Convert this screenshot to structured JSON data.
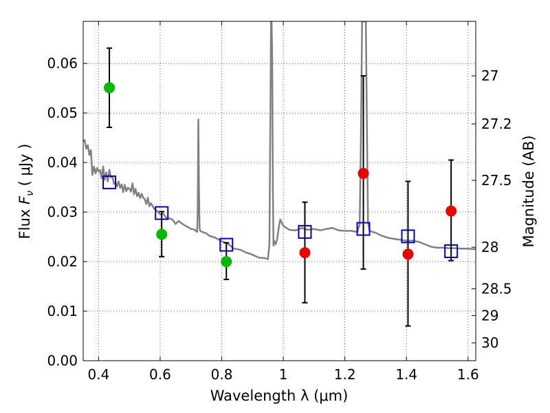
{
  "chart_data": {
    "type": "scatter",
    "xlabel": "Wavelength  λ (μm)",
    "ylabel": "Flux  F_ν  ( μJy )",
    "y2label": "Magnitude (AB)",
    "xlim": [
      0.35,
      1.625
    ],
    "ylim": [
      0.0,
      0.0685
    ],
    "grid": true,
    "x_ticks": [
      0.4,
      0.6,
      0.8,
      1.0,
      1.2,
      1.4,
      1.6
    ],
    "x_tick_labels": [
      "0.4",
      "0.6",
      "0.8",
      "1",
      "1.2",
      "1.4",
      "1.6"
    ],
    "y_ticks": [
      0.0,
      0.01,
      0.02,
      0.03,
      0.04,
      0.05,
      0.06
    ],
    "y_tick_labels": [
      "0.00",
      "0.01",
      "0.02",
      "0.03",
      "0.04",
      "0.05",
      "0.06"
    ],
    "y2_ticks": [
      {
        "label": "27",
        "flux": 0.0575
      },
      {
        "label": "27.2",
        "flux": 0.0478
      },
      {
        "label": "27.5",
        "flux": 0.0364
      },
      {
        "label": "28",
        "flux": 0.0229
      },
      {
        "label": "28.5",
        "flux": 0.0145
      },
      {
        "label": "29",
        "flux": 0.0091
      },
      {
        "label": "30",
        "flux": 0.0036
      }
    ],
    "model_spectrum": {
      "color": "#808080",
      "x": [
        0.35,
        0.355,
        0.36,
        0.365,
        0.37,
        0.375,
        0.38,
        0.385,
        0.39,
        0.395,
        0.4,
        0.405,
        0.41,
        0.415,
        0.42,
        0.425,
        0.43,
        0.435,
        0.44,
        0.445,
        0.45,
        0.455,
        0.46,
        0.465,
        0.47,
        0.475,
        0.48,
        0.485,
        0.49,
        0.495,
        0.5,
        0.505,
        0.51,
        0.515,
        0.52,
        0.525,
        0.53,
        0.535,
        0.54,
        0.545,
        0.55,
        0.555,
        0.56,
        0.565,
        0.57,
        0.58,
        0.59,
        0.6,
        0.61,
        0.62,
        0.63,
        0.64,
        0.65,
        0.66,
        0.67,
        0.68,
        0.69,
        0.7,
        0.71,
        0.72,
        0.722,
        0.724,
        0.726,
        0.728,
        0.73,
        0.74,
        0.75,
        0.76,
        0.78,
        0.8,
        0.82,
        0.84,
        0.86,
        0.88,
        0.9,
        0.92,
        0.94,
        0.95,
        0.955,
        0.958,
        0.96,
        0.962,
        0.964,
        0.966,
        0.968,
        0.97,
        0.975,
        0.98,
        0.985,
        0.99,
        1.0,
        1.02,
        1.04,
        1.06,
        1.08,
        1.1,
        1.12,
        1.14,
        1.16,
        1.18,
        1.2,
        1.22,
        1.24,
        1.248,
        1.252,
        1.256,
        1.26,
        1.264,
        1.268,
        1.272,
        1.275,
        1.28,
        1.3,
        1.32,
        1.34,
        1.36,
        1.38,
        1.4,
        1.42,
        1.44,
        1.46,
        1.48,
        1.5,
        1.52,
        1.54,
        1.56,
        1.58,
        1.6,
        1.625
      ],
      "y": [
        0.0443,
        0.0445,
        0.0428,
        0.0435,
        0.0415,
        0.0425,
        0.0375,
        0.0392,
        0.0378,
        0.0389,
        0.0382,
        0.0385,
        0.0368,
        0.0392,
        0.0365,
        0.038,
        0.0362,
        0.0385,
        0.037,
        0.0372,
        0.0357,
        0.036,
        0.0352,
        0.0362,
        0.0349,
        0.0356,
        0.034,
        0.0355,
        0.0342,
        0.0349,
        0.0347,
        0.0341,
        0.0358,
        0.0336,
        0.0347,
        0.0332,
        0.0339,
        0.0328,
        0.0337,
        0.0329,
        0.0326,
        0.0316,
        0.0329,
        0.0312,
        0.0318,
        0.0307,
        0.0302,
        0.0295,
        0.0297,
        0.0288,
        0.0287,
        0.0285,
        0.0276,
        0.0282,
        0.0277,
        0.0273,
        0.027,
        0.0266,
        0.0265,
        0.026,
        0.03,
        0.0487,
        0.035,
        0.0268,
        0.0262,
        0.0259,
        0.0257,
        0.0252,
        0.0248,
        0.0241,
        0.0236,
        0.0226,
        0.0224,
        0.0218,
        0.0214,
        0.0208,
        0.0207,
        0.0205,
        0.0235,
        0.05,
        0.0685,
        0.0685,
        0.06,
        0.035,
        0.0232,
        0.0242,
        0.0235,
        0.0245,
        0.0268,
        0.0285,
        0.0272,
        0.0264,
        0.0263,
        0.0268,
        0.0264,
        0.0266,
        0.0263,
        0.0266,
        0.0268,
        0.0263,
        0.0262,
        0.0262,
        0.026,
        0.0275,
        0.045,
        0.0685,
        0.0685,
        0.0685,
        0.0685,
        0.045,
        0.028,
        0.0262,
        0.0258,
        0.0252,
        0.0248,
        0.0246,
        0.0244,
        0.0242,
        0.0242,
        0.024,
        0.0235,
        0.023,
        0.0228,
        0.0228,
        0.0227,
        0.0227,
        0.0226,
        0.0226,
        0.0225
      ]
    },
    "model_photometry": {
      "marker": "open-square",
      "color": "#0000cc",
      "x": [
        0.435,
        0.605,
        0.815,
        1.07,
        1.26,
        1.405,
        1.545
      ],
      "y": [
        0.036,
        0.0298,
        0.0234,
        0.026,
        0.0266,
        0.0251,
        0.0221
      ]
    },
    "observed": [
      {
        "x": 0.435,
        "y": 0.0551,
        "yerr_low": 0.0471,
        "yerr_high": 0.0631,
        "color": "#00bb00"
      },
      {
        "x": 0.605,
        "y": 0.0255,
        "yerr_low": 0.021,
        "yerr_high": 0.0301,
        "color": "#00bb00"
      },
      {
        "x": 0.815,
        "y": 0.02,
        "yerr_low": 0.0164,
        "yerr_high": 0.0238,
        "color": "#00bb00"
      },
      {
        "x": 1.07,
        "y": 0.0218,
        "yerr_low": 0.0117,
        "yerr_high": 0.032,
        "color": "#ee0000"
      },
      {
        "x": 1.26,
        "y": 0.0378,
        "yerr_low": 0.0185,
        "yerr_high": 0.0575,
        "color": "#ee0000"
      },
      {
        "x": 1.405,
        "y": 0.0215,
        "yerr_low": 0.007,
        "yerr_high": 0.0362,
        "color": "#ee0000"
      },
      {
        "x": 1.545,
        "y": 0.0302,
        "yerr_low": 0.0202,
        "yerr_high": 0.0405,
        "color": "#ee0000"
      }
    ]
  }
}
